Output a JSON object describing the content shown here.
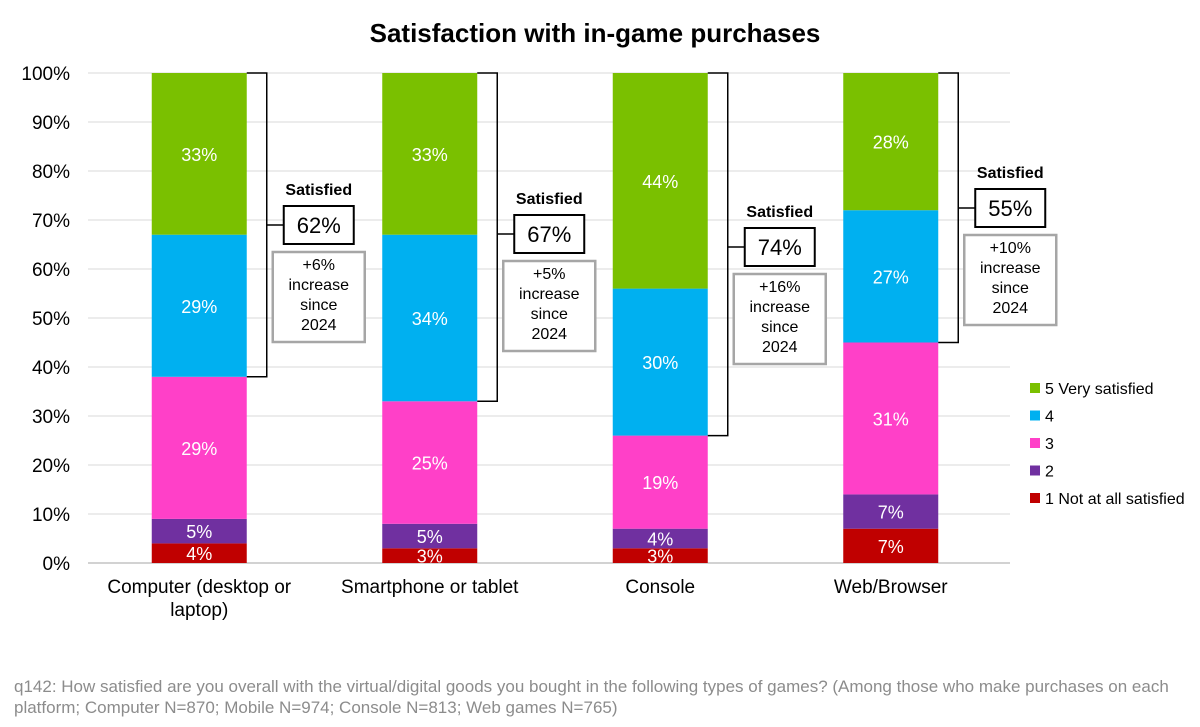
{
  "chart_data": {
    "type": "bar",
    "stacked": true,
    "title": "Satisfaction with in-game purchases",
    "categories": [
      [
        "Computer (desktop or",
        "laptop)"
      ],
      [
        "Smartphone or tablet"
      ],
      [
        "Console"
      ],
      [
        "Web/Browser"
      ]
    ],
    "ylim": [
      0,
      100
    ],
    "y_ticks": [
      "0%",
      "10%",
      "20%",
      "30%",
      "40%",
      "50%",
      "60%",
      "70%",
      "80%",
      "90%",
      "100%"
    ],
    "grid": true,
    "legend_position": "right",
    "series": [
      {
        "name": "1 Not at all satisfied",
        "color": "#c00000",
        "values": [
          4,
          3,
          3,
          7
        ],
        "labels": [
          "4%",
          "3%",
          "3%",
          "7%"
        ]
      },
      {
        "name": "2",
        "color": "#7030a0",
        "values": [
          5,
          5,
          4,
          7
        ],
        "labels": [
          "5%",
          "5%",
          "4%",
          "7%"
        ]
      },
      {
        "name": "3",
        "color": "#ff40c8",
        "values": [
          29,
          25,
          19,
          31
        ],
        "labels": [
          "29%",
          "25%",
          "19%",
          "31%"
        ]
      },
      {
        "name": "4",
        "color": "#00b0f0",
        "values": [
          29,
          34,
          30,
          27
        ],
        "labels": [
          "29%",
          "34%",
          "30%",
          "27%"
        ]
      },
      {
        "name": "5 Very satisfied",
        "color": "#7ac000",
        "values": [
          33,
          33,
          44,
          28
        ],
        "labels": [
          "33%",
          "33%",
          "44%",
          "28%"
        ]
      }
    ],
    "satisfied": [
      {
        "heading": "Satisfied",
        "value": "62%",
        "note": [
          "+6%",
          "increase",
          "since",
          "2024"
        ]
      },
      {
        "heading": "Satisfied",
        "value": "67%",
        "note": [
          "+5%",
          "increase",
          "since",
          "2024"
        ]
      },
      {
        "heading": "Satisfied",
        "value": "74%",
        "note": [
          "+16%",
          "increase",
          "since",
          "2024"
        ]
      },
      {
        "heading": "Satisfied",
        "value": "55%",
        "note": [
          "+10%",
          "increase",
          "since",
          "2024"
        ]
      }
    ]
  },
  "footnote": "q142: How satisfied are you overall with the virtual/digital goods you bought in the following types of games? (Among those who make purchases on each platform; Computer N=870; Mobile N=974; Console N=813; Web games N=765)"
}
